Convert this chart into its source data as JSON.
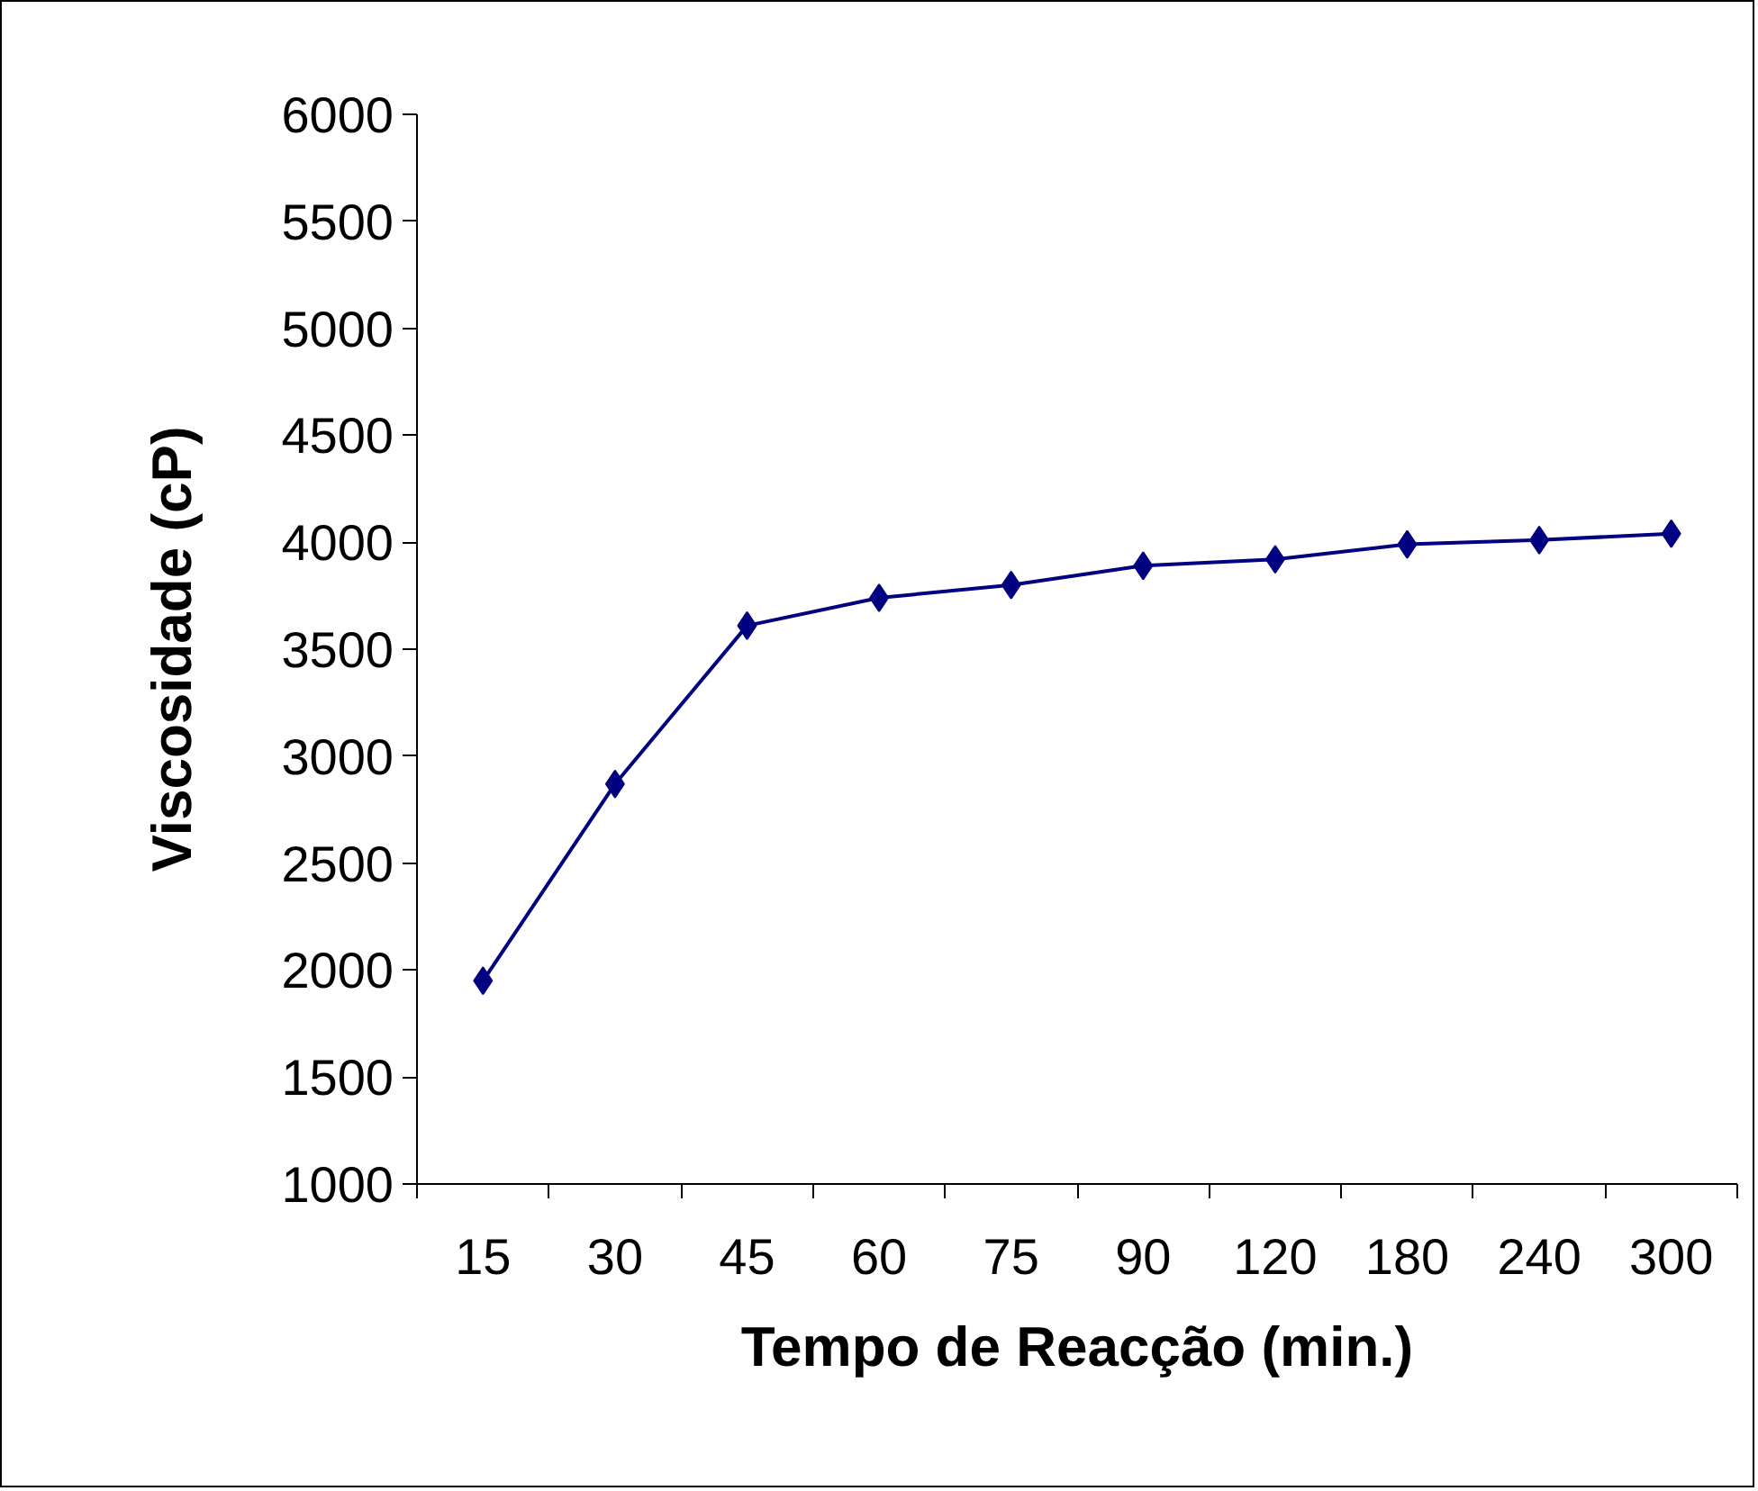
{
  "chart_data": {
    "type": "line",
    "xlabel": "Tempo de Reacção (min.)",
    "ylabel": "Viscosidade (cP)",
    "categories": [
      "15",
      "30",
      "45",
      "60",
      "75",
      "90",
      "120",
      "180",
      "240",
      "300"
    ],
    "series": [
      {
        "color": "#000080",
        "values": [
          1950,
          2870,
          3610,
          3740,
          3800,
          3890,
          3920,
          3990,
          4010,
          4040
        ]
      }
    ],
    "ylim": [
      1000,
      6000
    ],
    "yticks": [
      1000,
      1500,
      2000,
      2500,
      3000,
      3500,
      4000,
      4500,
      5000,
      5500,
      6000
    ],
    "grid": false,
    "marker": "diamond",
    "line_style": "solid"
  }
}
